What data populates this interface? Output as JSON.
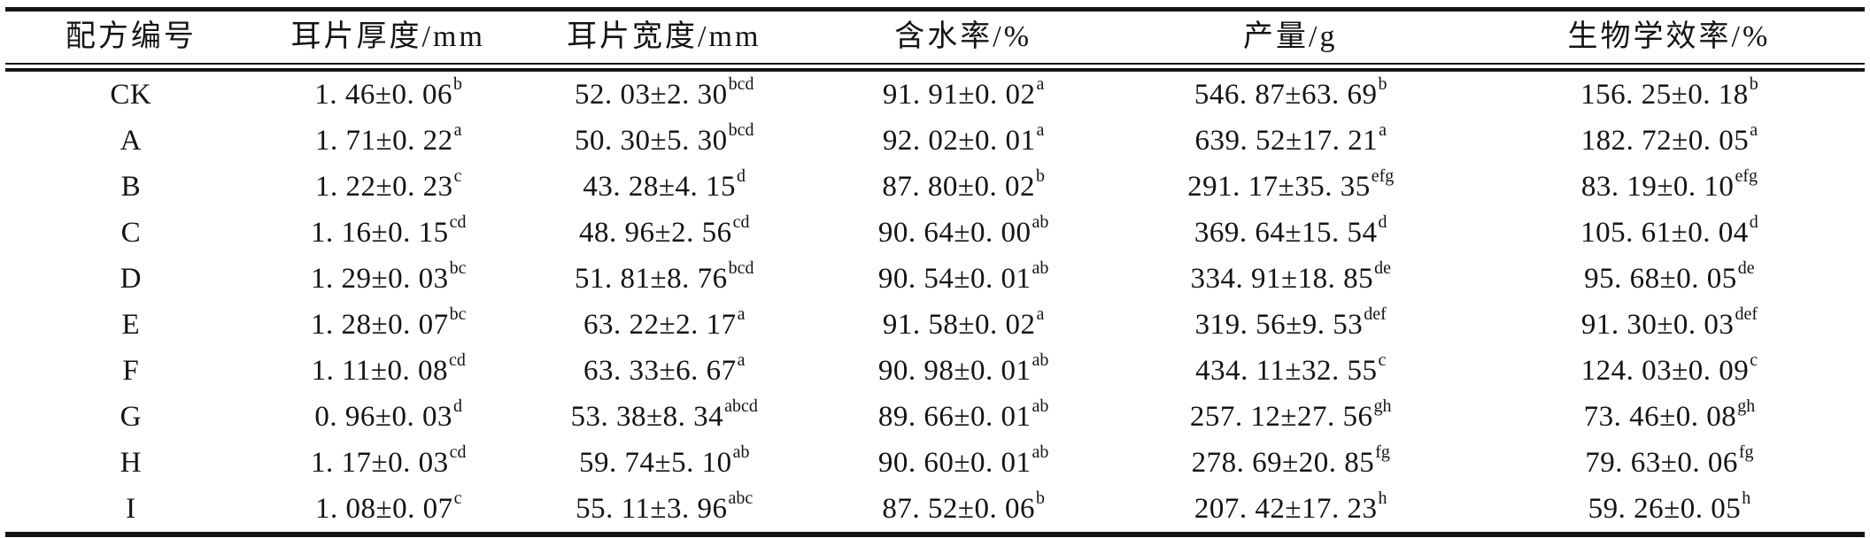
{
  "page": {
    "background_color": "#ffffff",
    "text_color": "#141414",
    "rule_color": "#141414"
  },
  "table": {
    "columns": [
      "配方编号",
      "耳片厚度/mm",
      "耳片宽度/mm",
      "含水率/%",
      "产量/g",
      "生物学效率/%"
    ],
    "rows": [
      {
        "id": "CK",
        "cells": [
          {
            "value": "1. 46±0. 06",
            "sup": "b"
          },
          {
            "value": "52. 03±2. 30",
            "sup": "bcd"
          },
          {
            "value": "91. 91±0. 02",
            "sup": "a"
          },
          {
            "value": "546. 87±63. 69",
            "sup": "b"
          },
          {
            "value": "156. 25±0. 18",
            "sup": "b"
          }
        ]
      },
      {
        "id": "A",
        "cells": [
          {
            "value": "1. 71±0. 22",
            "sup": "a"
          },
          {
            "value": "50. 30±5. 30",
            "sup": "bcd"
          },
          {
            "value": "92. 02±0. 01",
            "sup": "a"
          },
          {
            "value": "639. 52±17. 21",
            "sup": "a"
          },
          {
            "value": "182. 72±0. 05",
            "sup": "a"
          }
        ]
      },
      {
        "id": "B",
        "cells": [
          {
            "value": "1. 22±0. 23",
            "sup": "c"
          },
          {
            "value": "43. 28±4. 15",
            "sup": "d"
          },
          {
            "value": "87. 80±0. 02",
            "sup": "b"
          },
          {
            "value": "291. 17±35. 35",
            "sup": "efg"
          },
          {
            "value": "83. 19±0. 10",
            "sup": "efg"
          }
        ]
      },
      {
        "id": "C",
        "cells": [
          {
            "value": "1. 16±0. 15",
            "sup": "cd"
          },
          {
            "value": "48. 96±2. 56",
            "sup": "cd"
          },
          {
            "value": "90. 64±0. 00",
            "sup": "ab"
          },
          {
            "value": "369. 64±15. 54",
            "sup": "d"
          },
          {
            "value": "105. 61±0. 04",
            "sup": "d"
          }
        ]
      },
      {
        "id": "D",
        "cells": [
          {
            "value": "1. 29±0. 03",
            "sup": "bc"
          },
          {
            "value": "51. 81±8. 76",
            "sup": "bcd"
          },
          {
            "value": "90. 54±0. 01",
            "sup": "ab"
          },
          {
            "value": "334. 91±18. 85",
            "sup": "de"
          },
          {
            "value": "95. 68±0. 05",
            "sup": "de"
          }
        ]
      },
      {
        "id": "E",
        "cells": [
          {
            "value": "1. 28±0. 07",
            "sup": "bc"
          },
          {
            "value": "63. 22±2. 17",
            "sup": "a"
          },
          {
            "value": "91. 58±0. 02",
            "sup": "a"
          },
          {
            "value": "319. 56±9. 53",
            "sup": "def"
          },
          {
            "value": "91. 30±0. 03",
            "sup": "def"
          }
        ]
      },
      {
        "id": "F",
        "cells": [
          {
            "value": "1. 11±0. 08",
            "sup": "cd"
          },
          {
            "value": "63. 33±6. 67",
            "sup": "a"
          },
          {
            "value": "90. 98±0. 01",
            "sup": "ab"
          },
          {
            "value": "434. 11±32. 55",
            "sup": "c"
          },
          {
            "value": "124. 03±0. 09",
            "sup": "c"
          }
        ]
      },
      {
        "id": "G",
        "cells": [
          {
            "value": "0. 96±0. 03",
            "sup": "d"
          },
          {
            "value": "53. 38±8. 34",
            "sup": "abcd"
          },
          {
            "value": "89. 66±0. 01",
            "sup": "ab"
          },
          {
            "value": "257. 12±27. 56",
            "sup": "gh"
          },
          {
            "value": "73. 46±0. 08",
            "sup": "gh"
          }
        ]
      },
      {
        "id": "H",
        "cells": [
          {
            "value": "1. 17±0. 03",
            "sup": "cd"
          },
          {
            "value": "59. 74±5. 10",
            "sup": "ab"
          },
          {
            "value": "90. 60±0. 01",
            "sup": "ab"
          },
          {
            "value": "278. 69±20. 85",
            "sup": "fg"
          },
          {
            "value": "79. 63±0. 06",
            "sup": "fg"
          }
        ]
      },
      {
        "id": "I",
        "cells": [
          {
            "value": "1. 08±0. 07",
            "sup": "c"
          },
          {
            "value": "55. 11±3. 96",
            "sup": "abc"
          },
          {
            "value": "87. 52±0. 06",
            "sup": "b"
          },
          {
            "value": "207. 42±17. 23",
            "sup": "h"
          },
          {
            "value": "59. 26±0. 05",
            "sup": "h"
          }
        ]
      }
    ]
  },
  "chart_data": {
    "type": "table",
    "title": "",
    "columns": [
      "配方编号",
      "耳片厚度/mm",
      "耳片宽度/mm",
      "含水率/%",
      "产量/g",
      "生物学效率/%"
    ],
    "categories": [
      "CK",
      "A",
      "B",
      "C",
      "D",
      "E",
      "F",
      "G",
      "H",
      "I"
    ],
    "series": [
      {
        "name": "耳片厚度/mm",
        "values": [
          1.46,
          1.71,
          1.22,
          1.16,
          1.29,
          1.28,
          1.11,
          0.96,
          1.17,
          1.08
        ]
      },
      {
        "name": "耳片宽度/mm",
        "values": [
          52.03,
          50.3,
          43.28,
          48.96,
          51.81,
          63.22,
          63.33,
          53.38,
          59.74,
          55.11
        ]
      },
      {
        "name": "含水率/%",
        "values": [
          91.91,
          92.02,
          87.8,
          90.64,
          90.54,
          91.58,
          90.98,
          89.66,
          90.6,
          87.52
        ]
      },
      {
        "name": "产量/g",
        "values": [
          546.87,
          639.52,
          291.17,
          369.64,
          334.91,
          319.56,
          434.11,
          257.12,
          278.69,
          207.42
        ]
      },
      {
        "name": "生物学效率/%",
        "values": [
          156.25,
          182.72,
          83.19,
          105.61,
          95.68,
          91.3,
          124.03,
          73.46,
          79.63,
          59.26
        ]
      }
    ]
  }
}
